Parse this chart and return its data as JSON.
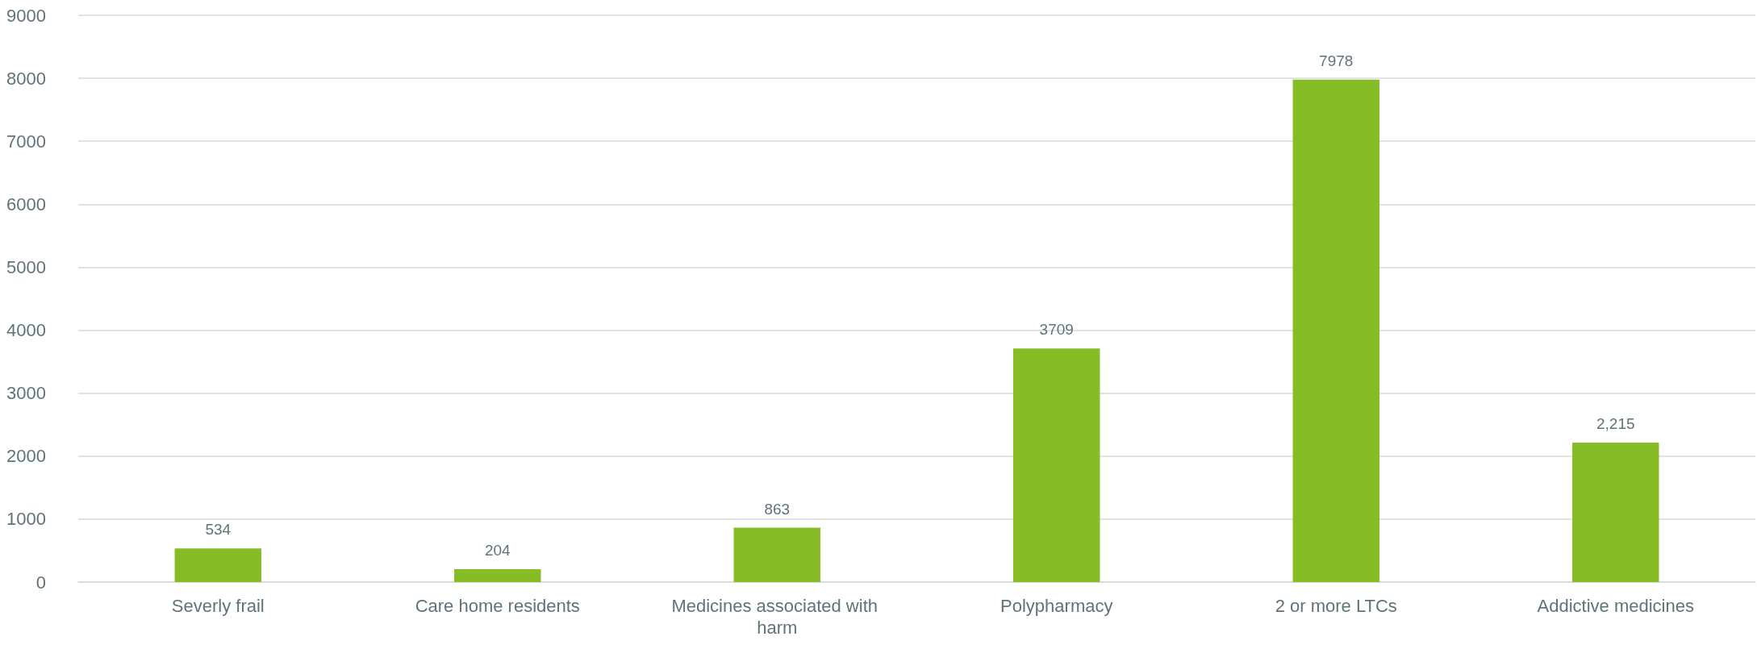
{
  "chart_data": {
    "type": "bar",
    "categories": [
      "Severly frail",
      "Care home residents",
      "Medicines associated with harm",
      "Polypharmacy",
      "2 or more LTCs",
      "Addictive medicines"
    ],
    "values": [
      534,
      204,
      863,
      3709,
      7978,
      2215
    ],
    "value_labels": [
      "534",
      "204",
      "863",
      "3709",
      "7978",
      "2,215"
    ],
    "color": "#86bc25",
    "ylim": [
      0,
      9000
    ],
    "yticks": [
      0,
      1000,
      2000,
      3000,
      4000,
      5000,
      6000,
      7000,
      8000,
      9000
    ],
    "grid": "y"
  }
}
